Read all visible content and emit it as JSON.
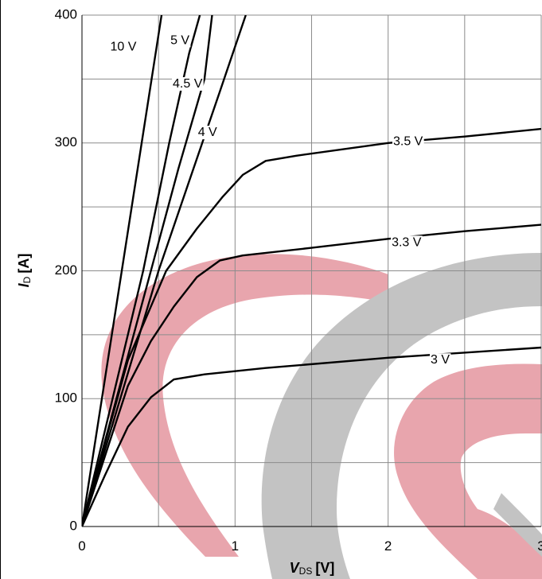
{
  "chart_data": {
    "type": "line",
    "xlabel": {
      "symbol": "V",
      "subscript": "DS",
      "unit": "[V]"
    },
    "ylabel": {
      "symbol": "I",
      "subscript": "D",
      "unit": "[A]"
    },
    "xlim": [
      0,
      3
    ],
    "ylim": [
      0,
      400
    ],
    "x_ticks": [
      0,
      1,
      2,
      3
    ],
    "y_ticks": [
      0,
      100,
      200,
      300,
      400
    ],
    "grid": true,
    "watermark_colors": {
      "red": "#e8a5ad",
      "gray": "#c3c3c3"
    },
    "series": [
      {
        "name": "10 V",
        "points": [
          [
            0,
            0
          ],
          [
            0.52,
            400
          ]
        ]
      },
      {
        "name": "5 V",
        "points": [
          [
            0,
            0
          ],
          [
            0.4,
            200
          ],
          [
            0.57,
            300
          ],
          [
            0.7,
            370
          ],
          [
            0.77,
            400
          ]
        ]
      },
      {
        "name": "4.5 V",
        "points": [
          [
            0,
            0
          ],
          [
            0.45,
            200
          ],
          [
            0.63,
            280
          ],
          [
            0.8,
            350
          ],
          [
            0.85,
            400
          ]
        ]
      },
      {
        "name": "4 V",
        "points": [
          [
            0,
            0
          ],
          [
            0.5,
            200
          ],
          [
            0.7,
            270
          ],
          [
            0.9,
            340
          ],
          [
            1.07,
            400
          ]
        ]
      },
      {
        "name": "3.5 V",
        "points": [
          [
            0,
            0
          ],
          [
            0.3,
            130
          ],
          [
            0.55,
            200
          ],
          [
            0.75,
            233
          ],
          [
            0.92,
            258
          ],
          [
            1.05,
            275
          ],
          [
            1.2,
            286
          ],
          [
            1.4,
            290
          ],
          [
            2.0,
            300
          ],
          [
            2.5,
            305
          ],
          [
            3.0,
            311
          ]
        ]
      },
      {
        "name": "3.3 V",
        "points": [
          [
            0,
            0
          ],
          [
            0.3,
            110
          ],
          [
            0.45,
            145
          ],
          [
            0.6,
            172
          ],
          [
            0.75,
            195
          ],
          [
            0.9,
            208
          ],
          [
            1.05,
            212
          ],
          [
            1.5,
            218
          ],
          [
            2.0,
            225
          ],
          [
            2.5,
            231
          ],
          [
            3.0,
            236
          ]
        ]
      },
      {
        "name": "3 V",
        "points": [
          [
            0,
            0
          ],
          [
            0.15,
            40
          ],
          [
            0.3,
            78
          ],
          [
            0.45,
            101
          ],
          [
            0.6,
            115
          ],
          [
            0.8,
            119
          ],
          [
            1.2,
            124
          ],
          [
            2.0,
            132
          ],
          [
            3.0,
            140
          ]
        ]
      }
    ],
    "curve_labels": [
      {
        "series": "10 V",
        "at": [
          0.27,
          375
        ]
      },
      {
        "series": "5 V",
        "at": [
          0.64,
          380
        ]
      },
      {
        "series": "4.5 V",
        "at": [
          0.69,
          346
        ]
      },
      {
        "series": "4 V",
        "at": [
          0.82,
          308
        ]
      },
      {
        "series": "3.5 V",
        "at": [
          2.13,
          301
        ]
      },
      {
        "series": "3.3 V",
        "at": [
          2.12,
          222
        ]
      },
      {
        "series": "3 V",
        "at": [
          2.34,
          130
        ]
      }
    ]
  }
}
